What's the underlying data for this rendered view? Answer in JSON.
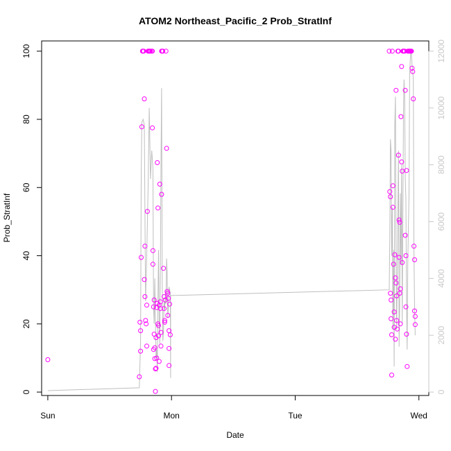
{
  "chart_data": {
    "type": "scatter",
    "title": "ATOM2 Northeast_Pacific_2 Prob_StratInf",
    "xlabel": "Date",
    "ylabel": "Prob_StratInf",
    "x_ticks": [
      "Sun",
      "Mon",
      "Tue",
      "Wed"
    ],
    "y_ticks": [
      "0",
      "20",
      "40",
      "60",
      "80",
      "100"
    ],
    "y2_ticks": [
      "0",
      "2000",
      "4000",
      "6000",
      "8000",
      "10000",
      "12000"
    ],
    "xlim_days": [
      -0.05,
      3.08
    ],
    "ylim": [
      -1,
      103
    ],
    "y2lim": [
      -120,
      12360
    ],
    "grid": false,
    "colors": {
      "points": "#ff00ff",
      "line": "#bebebe",
      "axis": "#000000",
      "axis2": "#c8c8c8"
    },
    "series": [
      {
        "kind": "points",
        "points": [
          [
            0.0,
            9.5
          ],
          [
            0.74,
            4.5
          ],
          [
            0.745,
            20.5
          ],
          [
            0.75,
            18
          ],
          [
            0.75,
            12
          ],
          [
            0.755,
            39.5
          ],
          [
            0.76,
            77.8
          ],
          [
            0.765,
            100
          ],
          [
            0.77,
            100
          ],
          [
            0.775,
            100
          ],
          [
            0.78,
            33
          ],
          [
            0.78,
            86
          ],
          [
            0.785,
            28
          ],
          [
            0.785,
            42.8
          ],
          [
            0.79,
            21
          ],
          [
            0.795,
            20
          ],
          [
            0.8,
            13.5
          ],
          [
            0.8,
            25.5
          ],
          [
            0.805,
            53
          ],
          [
            0.81,
            100
          ],
          [
            0.815,
            100
          ],
          [
            0.82,
            100
          ],
          [
            0.825,
            100
          ],
          [
            0.83,
            100
          ],
          [
            0.84,
            100
          ],
          [
            0.845,
            100
          ],
          [
            0.845,
            77.5
          ],
          [
            0.85,
            41.5
          ],
          [
            0.85,
            37.5
          ],
          [
            0.855,
            25
          ],
          [
            0.855,
            12.5
          ],
          [
            0.86,
            27
          ],
          [
            0.86,
            17
          ],
          [
            0.865,
            13
          ],
          [
            0.865,
            9.8
          ],
          [
            0.87,
            6.8
          ],
          [
            0.87,
            0.2
          ],
          [
            0.875,
            7
          ],
          [
            0.875,
            16
          ],
          [
            0.88,
            24.8
          ],
          [
            0.88,
            10
          ],
          [
            0.885,
            26
          ],
          [
            0.885,
            67.3
          ],
          [
            0.89,
            54
          ],
          [
            0.89,
            20
          ],
          [
            0.895,
            19.5
          ],
          [
            0.895,
            16.5
          ],
          [
            0.9,
            25.5
          ],
          [
            0.9,
            9
          ],
          [
            0.905,
            61
          ],
          [
            0.91,
            26.5
          ],
          [
            0.91,
            24.5
          ],
          [
            0.915,
            17.5
          ],
          [
            0.915,
            13.5
          ],
          [
            0.92,
            58
          ],
          [
            0.92,
            100
          ],
          [
            0.925,
            100
          ],
          [
            0.93,
            100
          ],
          [
            0.935,
            36.3
          ],
          [
            0.94,
            28
          ],
          [
            0.94,
            24.5
          ],
          [
            0.945,
            21
          ],
          [
            0.945,
            20.5
          ],
          [
            0.95,
            27
          ],
          [
            0.955,
            100
          ],
          [
            0.96,
            71.5
          ],
          [
            0.965,
            29.5
          ],
          [
            0.97,
            29
          ],
          [
            0.97,
            22.5
          ],
          [
            0.975,
            27.5
          ],
          [
            0.98,
            18
          ],
          [
            0.98,
            12.8
          ],
          [
            0.98,
            7.8
          ],
          [
            0.985,
            25.8
          ],
          [
            0.99,
            16.8
          ],
          [
            2.76,
            100
          ],
          [
            2.765,
            58.8
          ],
          [
            2.77,
            57.3
          ],
          [
            2.77,
            29
          ],
          [
            2.775,
            27
          ],
          [
            2.775,
            21.5
          ],
          [
            2.78,
            16.8
          ],
          [
            2.78,
            5
          ],
          [
            2.785,
            100
          ],
          [
            2.79,
            60.5
          ],
          [
            2.79,
            54.2
          ],
          [
            2.795,
            37.5
          ],
          [
            2.8,
            23.5
          ],
          [
            2.8,
            19
          ],
          [
            2.805,
            40.3
          ],
          [
            2.81,
            33.5
          ],
          [
            2.81,
            15.5
          ],
          [
            2.815,
            88.5
          ],
          [
            2.815,
            32
          ],
          [
            2.82,
            28.2
          ],
          [
            2.82,
            21
          ],
          [
            2.825,
            18.5
          ],
          [
            2.83,
            100
          ],
          [
            2.835,
            100
          ],
          [
            2.835,
            69.5
          ],
          [
            2.84,
            50.5
          ],
          [
            2.84,
            39.5
          ],
          [
            2.845,
            49.8
          ],
          [
            2.845,
            29
          ],
          [
            2.85,
            30.3
          ],
          [
            2.85,
            20
          ],
          [
            2.855,
            80.8
          ],
          [
            2.86,
            95.5
          ],
          [
            2.86,
            67.5
          ],
          [
            2.865,
            64.8
          ],
          [
            2.865,
            38
          ],
          [
            2.87,
            100
          ],
          [
            2.875,
            100
          ],
          [
            2.88,
            100
          ],
          [
            2.885,
            100
          ],
          [
            2.89,
            88.5
          ],
          [
            2.89,
            46
          ],
          [
            2.895,
            40
          ],
          [
            2.895,
            25
          ],
          [
            2.9,
            65
          ],
          [
            2.9,
            17
          ],
          [
            2.905,
            7.5
          ],
          [
            2.91,
            100
          ],
          [
            2.915,
            100
          ],
          [
            2.92,
            100
          ],
          [
            2.925,
            100
          ],
          [
            2.93,
            100
          ],
          [
            2.935,
            100
          ],
          [
            2.94,
            100
          ],
          [
            2.945,
            95
          ],
          [
            2.95,
            94
          ],
          [
            2.955,
            86
          ],
          [
            2.96,
            42.8
          ],
          [
            2.965,
            38.8
          ],
          [
            2.965,
            23.8
          ],
          [
            2.97,
            22.2
          ],
          [
            2.97,
            19.8
          ]
        ]
      },
      {
        "kind": "line",
        "axis": "y2",
        "points": [
          [
            0.0,
            50
          ],
          [
            0.74,
            150
          ],
          [
            0.75,
            1800
          ],
          [
            0.755,
            7500
          ],
          [
            0.76,
            9500
          ],
          [
            0.77,
            9600
          ],
          [
            0.78,
            9400
          ],
          [
            0.79,
            3200
          ],
          [
            0.8,
            4800
          ],
          [
            0.81,
            7000
          ],
          [
            0.82,
            10000
          ],
          [
            0.83,
            7500
          ],
          [
            0.84,
            8500
          ],
          [
            0.85,
            7900
          ],
          [
            0.855,
            3000
          ],
          [
            0.86,
            2400
          ],
          [
            0.865,
            4000
          ],
          [
            0.87,
            2500
          ],
          [
            0.875,
            1200
          ],
          [
            0.88,
            1500
          ],
          [
            0.885,
            700
          ],
          [
            0.89,
            3200
          ],
          [
            0.895,
            5000
          ],
          [
            0.9,
            2500
          ],
          [
            0.905,
            1700
          ],
          [
            0.91,
            4000
          ],
          [
            0.915,
            8000
          ],
          [
            0.92,
            10700
          ],
          [
            0.925,
            4000
          ],
          [
            0.93,
            1800
          ],
          [
            0.935,
            2100
          ],
          [
            0.94,
            3200
          ],
          [
            0.945,
            2900
          ],
          [
            0.95,
            3500
          ],
          [
            0.955,
            3100
          ],
          [
            0.96,
            4700
          ],
          [
            0.965,
            4200
          ],
          [
            0.97,
            2600
          ],
          [
            0.975,
            3000
          ],
          [
            0.98,
            3700
          ],
          [
            0.99,
            3500
          ],
          [
            0.993,
            500
          ],
          [
            0.993,
            3400
          ],
          [
            2.76,
            3600
          ],
          [
            2.765,
            5500
          ],
          [
            2.77,
            8900
          ],
          [
            2.775,
            8500
          ],
          [
            2.78,
            4800
          ],
          [
            2.785,
            6500
          ],
          [
            2.79,
            2200
          ],
          [
            2.795,
            5000
          ],
          [
            2.8,
            900
          ],
          [
            2.805,
            9400
          ],
          [
            2.81,
            10400
          ],
          [
            2.815,
            5000
          ],
          [
            2.82,
            2200
          ],
          [
            2.825,
            4000
          ],
          [
            2.83,
            6200
          ],
          [
            2.835,
            8500
          ],
          [
            2.84,
            1600
          ],
          [
            2.845,
            3000
          ],
          [
            2.85,
            7000
          ],
          [
            2.855,
            4500
          ],
          [
            2.86,
            8000
          ],
          [
            2.865,
            2400
          ],
          [
            2.87,
            6000
          ],
          [
            2.875,
            9800
          ],
          [
            2.88,
            11000
          ],
          [
            2.885,
            10400
          ],
          [
            2.89,
            7500
          ],
          [
            2.895,
            6800
          ],
          [
            2.9,
            3200
          ],
          [
            2.905,
            1500
          ],
          [
            2.91,
            4500
          ],
          [
            2.915,
            5800
          ],
          [
            2.92,
            7000
          ],
          [
            2.925,
            11200
          ],
          [
            2.93,
            11700
          ],
          [
            2.935,
            12000
          ],
          [
            2.94,
            11900
          ],
          [
            2.945,
            11500
          ],
          [
            2.95,
            11300
          ],
          [
            2.955,
            11000
          ],
          [
            2.96,
            5000
          ],
          [
            2.965,
            3000
          ],
          [
            2.97,
            2000
          ]
        ]
      }
    ]
  }
}
